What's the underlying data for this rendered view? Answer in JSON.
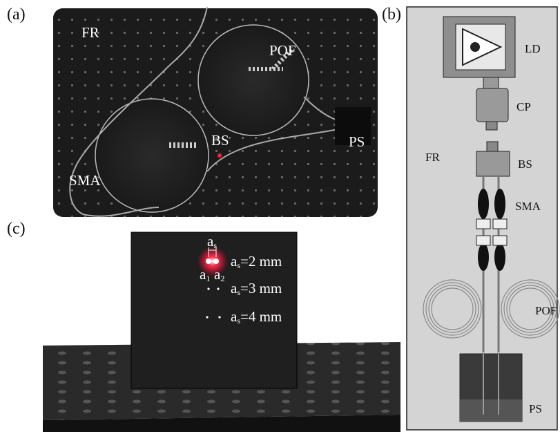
{
  "panel_a": {
    "label": "(a)",
    "fr": "FR",
    "pof": "POF",
    "bs": "BS",
    "ps": "PS",
    "sma": "SMA"
  },
  "panel_b": {
    "label": "(b)",
    "ld": "LD",
    "cp": "CP",
    "fr": "FR",
    "bs": "BS",
    "sma": "SMA",
    "pof": "POF",
    "ps": "PS"
  },
  "panel_c": {
    "label": "(c)",
    "spacing": {
      "letter": "a",
      "sub": "s"
    },
    "beams": [
      {
        "letter": "a",
        "sub": "1"
      },
      {
        "letter": "a",
        "sub": "2"
      }
    ],
    "rows": [
      {
        "letter": "a",
        "sub": "s",
        "text": "=2 mm"
      },
      {
        "letter": "a",
        "sub": "s",
        "text": "=3 mm"
      },
      {
        "letter": "a",
        "sub": "s",
        "text": "=4 mm"
      }
    ]
  }
}
